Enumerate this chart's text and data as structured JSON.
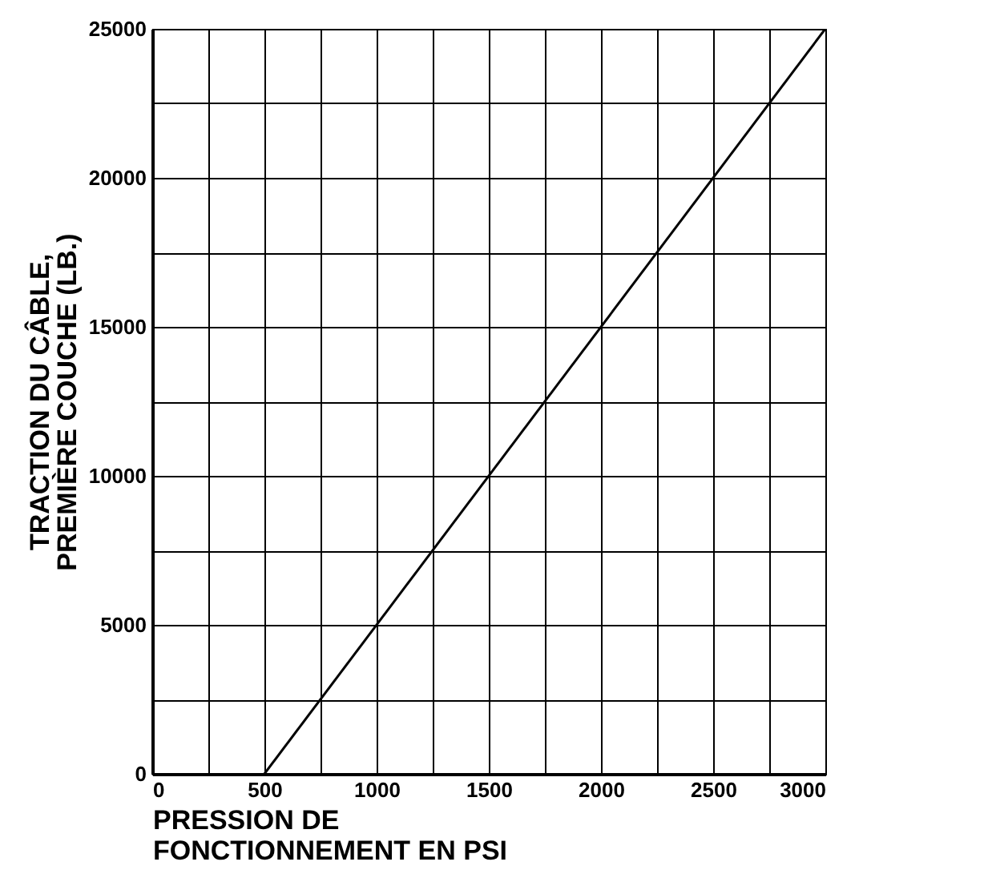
{
  "chart_data": {
    "type": "line",
    "xlabel": "PRESSION DE\nFONCTIONNEMENT EN PSI",
    "ylabel": "TRACTION DU CÂBLE,\nPREMIÈRE COUCHE (LB.)",
    "x": [
      500,
      3000
    ],
    "series": [
      {
        "color": "#000000",
        "values": [
          0,
          25000
        ]
      }
    ],
    "xlim": [
      0,
      3000
    ],
    "xticks": [
      0,
      {
        "value": 250,
        "label": null
      },
      500,
      {
        "value": 750,
        "label": null
      },
      1000,
      {
        "value": 1250,
        "label": null
      },
      1500,
      {
        "value": 1750,
        "label": null
      },
      2000,
      {
        "value": 2250,
        "label": null
      },
      2500,
      {
        "value": 2750,
        "label": null
      },
      3000
    ],
    "ylim": [
      0,
      25000
    ],
    "yticks": [
      0,
      {
        "value": 2500,
        "label": null
      },
      5000,
      {
        "value": 7500,
        "label": null
      },
      10000,
      {
        "value": 12500,
        "label": null
      },
      15000,
      {
        "value": 17500,
        "label": null
      },
      20000,
      {
        "value": 22500,
        "label": null
      },
      25000
    ],
    "grid": true,
    "marker": "none",
    "line_style": "solid"
  }
}
